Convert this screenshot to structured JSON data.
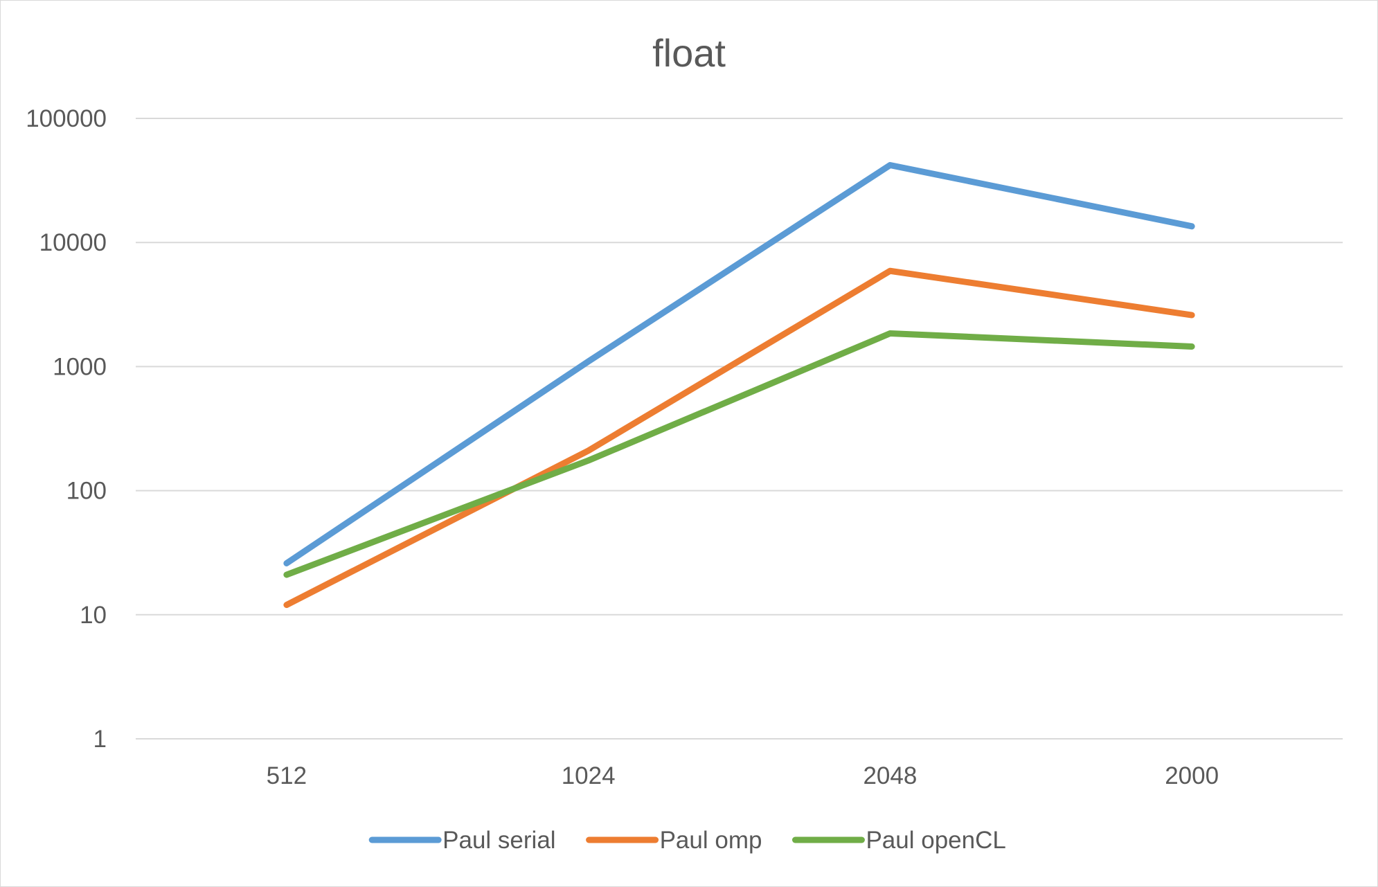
{
  "chart_data": {
    "type": "line",
    "title": "float",
    "xlabel": "",
    "ylabel": "",
    "y_scale": "log",
    "ylim": [
      1,
      100000
    ],
    "y_ticks": [
      {
        "value": 1,
        "label": "1"
      },
      {
        "value": 10,
        "label": "10"
      },
      {
        "value": 100,
        "label": "100"
      },
      {
        "value": 1000,
        "label": "1000"
      },
      {
        "value": 10000,
        "label": "10000"
      },
      {
        "value": 100000,
        "label": "100000"
      }
    ],
    "categories": [
      "512",
      "1024",
      "2048",
      "2000"
    ],
    "series": [
      {
        "name": "Paul serial",
        "color": "#5b9bd5",
        "values": [
          26,
          1100,
          42000,
          13500
        ]
      },
      {
        "name": "Paul omp",
        "color": "#ed7d31",
        "values": [
          12,
          210,
          5900,
          2600
        ]
      },
      {
        "name": "Paul openCL",
        "color": "#70ad47",
        "values": [
          21,
          175,
          1850,
          1450
        ]
      }
    ],
    "grid": true,
    "legend": "bottom"
  }
}
